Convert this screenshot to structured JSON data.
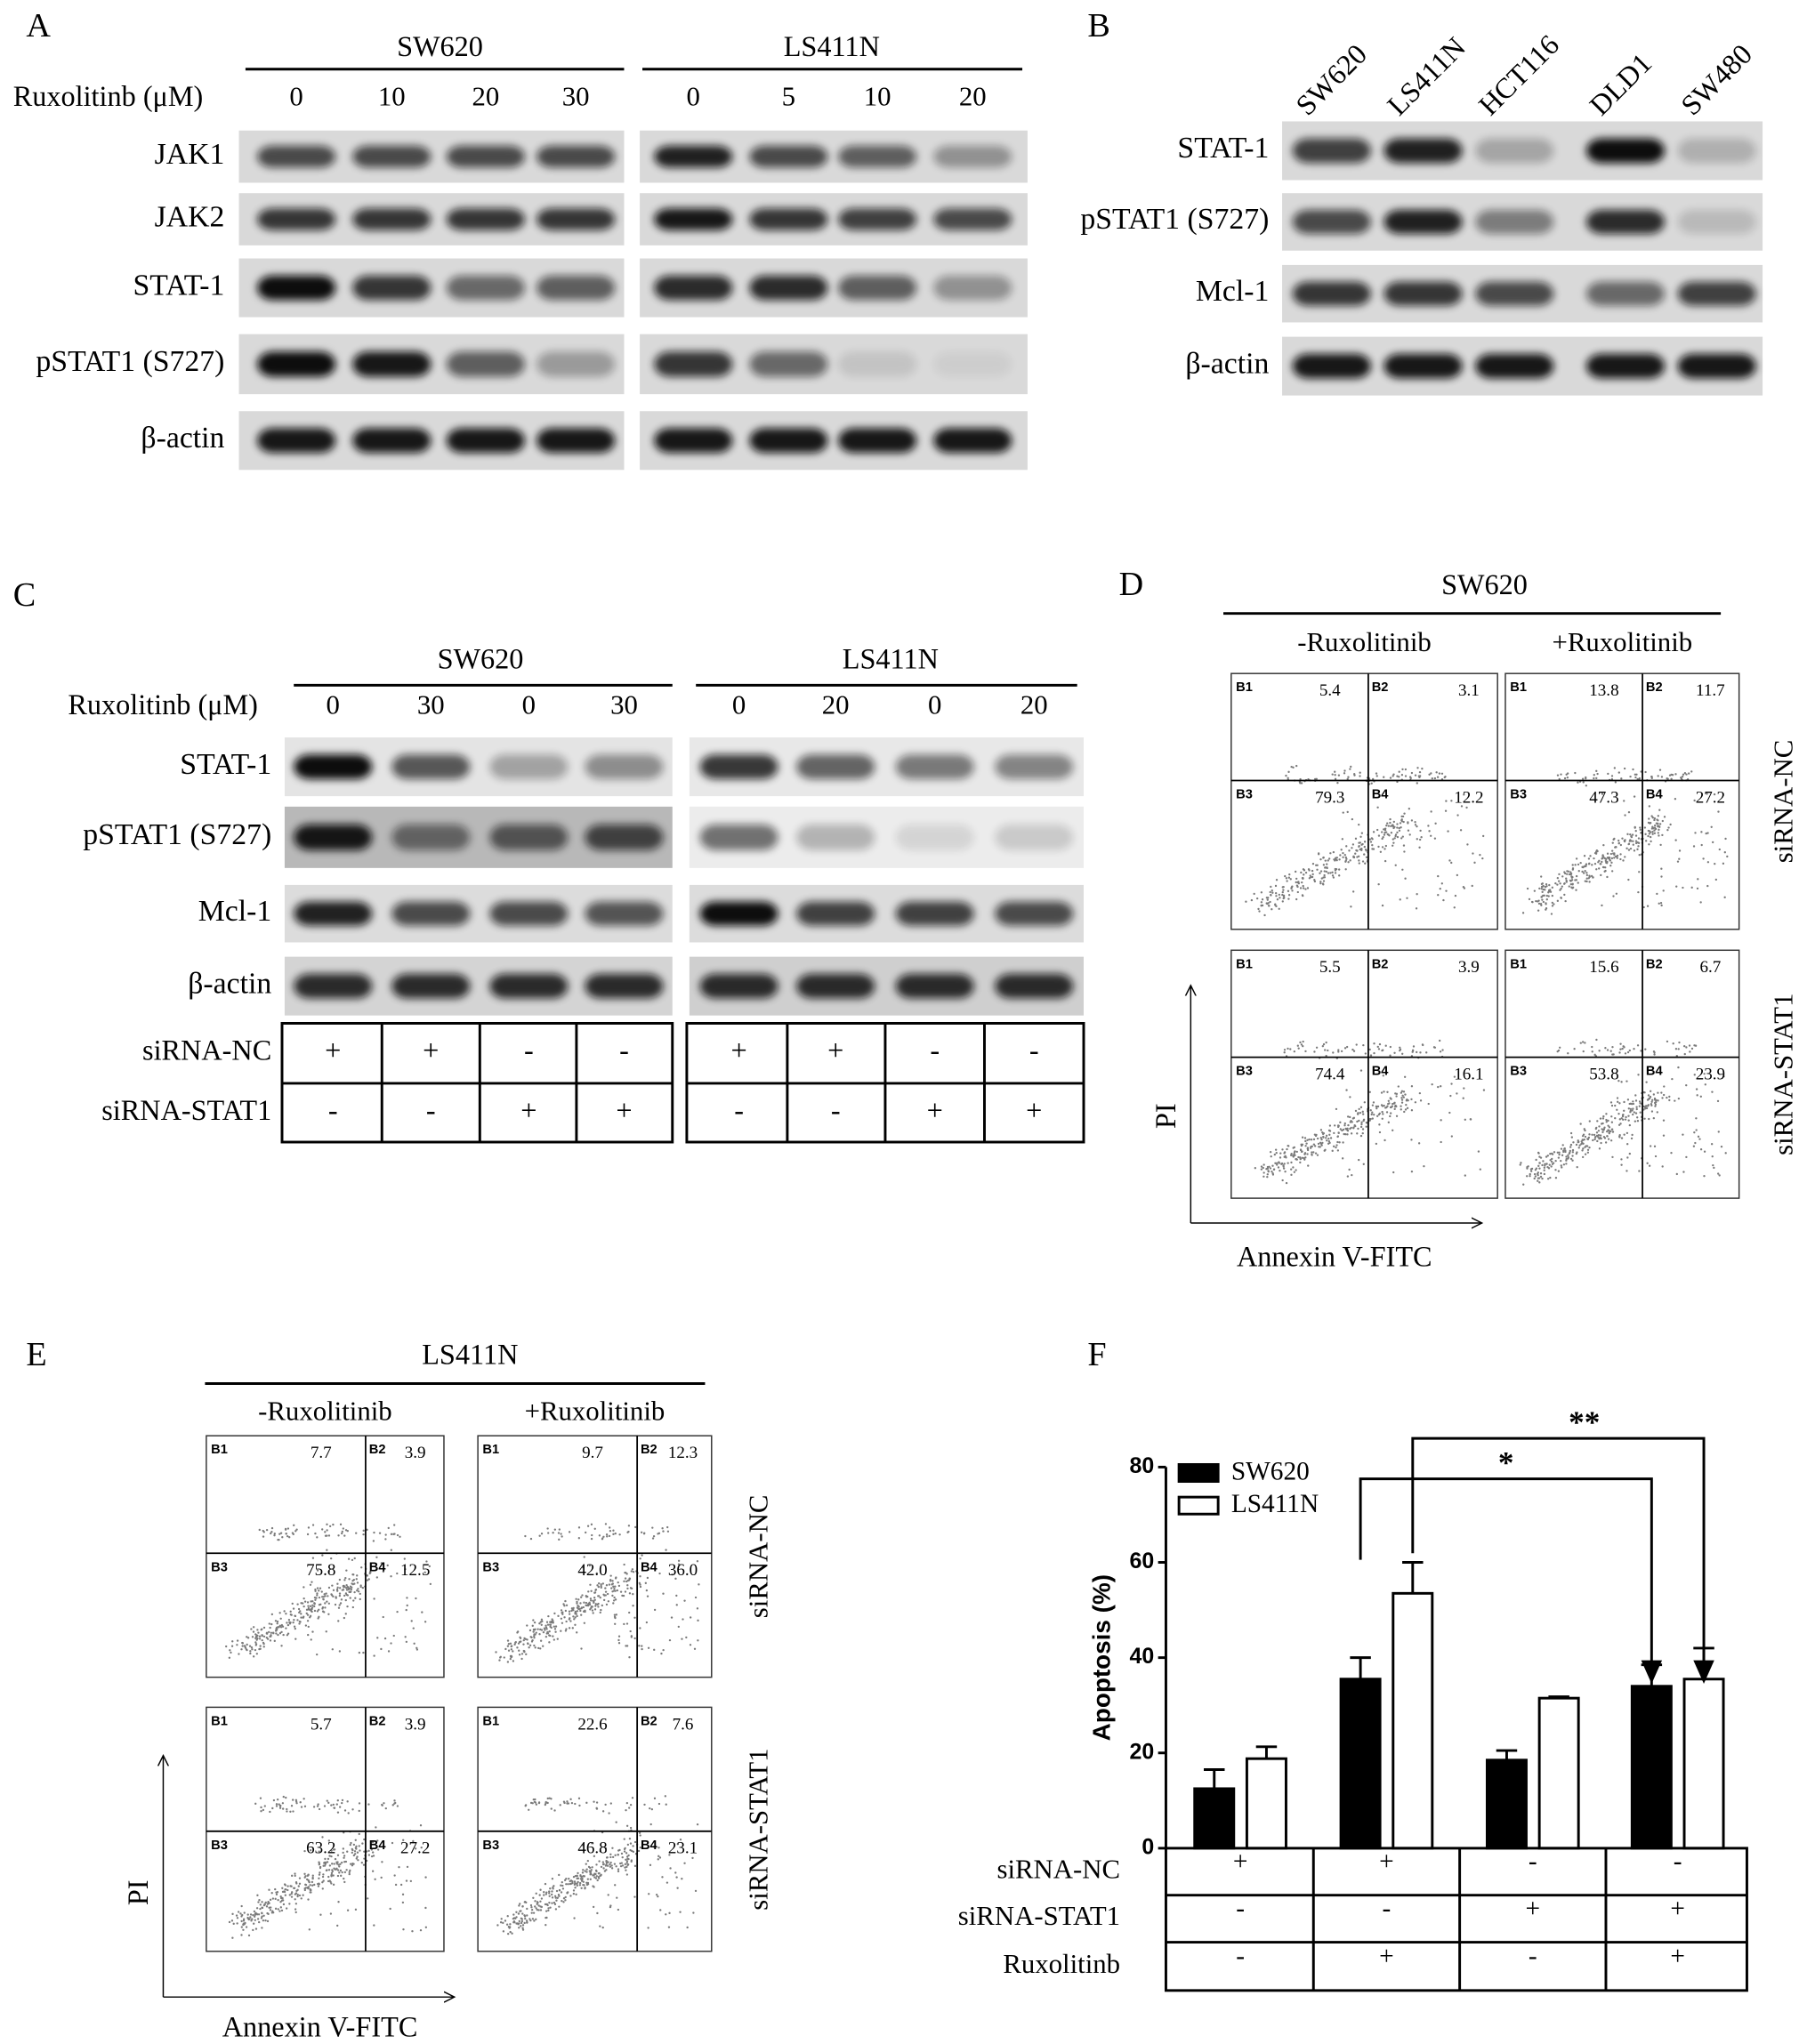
{
  "panel_a": {
    "label": "A",
    "dose_label": "Ruxolitinb (μM)",
    "groups": [
      {
        "name": "SW620",
        "doses": [
          0,
          10,
          20,
          30
        ]
      },
      {
        "name": "LS411N",
        "doses": [
          0,
          5,
          10,
          20
        ]
      }
    ],
    "rows": [
      "JAK1",
      "JAK2",
      "STAT-1",
      "pSTAT1 (S727)",
      "β-actin"
    ]
  },
  "panel_b": {
    "label": "B",
    "cell_lines": [
      "SW620",
      "LS411N",
      "HCT116",
      "DLD1",
      "SW480"
    ],
    "rows": [
      "STAT-1",
      "pSTAT1 (S727)",
      "Mcl-1",
      "β-actin"
    ]
  },
  "panel_c": {
    "label": "C",
    "dose_label": "Ruxolitinb (μM)",
    "groups": [
      {
        "name": "SW620",
        "doses": [
          0,
          30,
          0,
          30
        ],
        "sirna_nc": [
          "+",
          "+",
          "-",
          "-"
        ],
        "sirna_stat1": [
          "-",
          "-",
          "+",
          "+"
        ]
      },
      {
        "name": "LS411N",
        "doses": [
          0,
          20,
          0,
          20
        ],
        "sirna_nc": [
          "+",
          "+",
          "-",
          "-"
        ],
        "sirna_stat1": [
          "-",
          "-",
          "+",
          "+"
        ]
      }
    ],
    "rows": [
      "STAT-1",
      "pSTAT1 (S727)",
      "Mcl-1",
      "β-actin"
    ],
    "table_rows": [
      "siRNA-NC",
      "siRNA-STAT1"
    ]
  },
  "panel_d": {
    "label": "D",
    "title": "SW620",
    "columns": [
      "-Ruxolitinib",
      "+Ruxolitinib"
    ],
    "rows": [
      "siRNA-NC",
      "siRNA-STAT1"
    ],
    "ylabel": "PI",
    "xlabel": "Annexin V-FITC",
    "quadrant_names": [
      "B1",
      "B2",
      "B3",
      "B4"
    ],
    "plots": [
      [
        [
          "5.4",
          "3.1",
          "79.3",
          "12.2"
        ],
        [
          "13.8",
          "11.7",
          "47.3",
          "27.2"
        ]
      ],
      [
        [
          "5.5",
          "3.9",
          "74.4",
          "16.1"
        ],
        [
          "15.6",
          "6.7",
          "53.8",
          "23.9"
        ]
      ]
    ]
  },
  "panel_e": {
    "label": "E",
    "title": "LS411N",
    "columns": [
      "-Ruxolitinib",
      "+Ruxolitinib"
    ],
    "rows": [
      "siRNA-NC",
      "siRNA-STAT1"
    ],
    "ylabel": "PI",
    "xlabel": "Annexin V-FITC",
    "quadrant_names": [
      "B1",
      "B2",
      "B3",
      "B4"
    ],
    "plots": [
      [
        [
          "7.7",
          "3.9",
          "75.8",
          "12.5"
        ],
        [
          "9.7",
          "12.3",
          "42.0",
          "36.0"
        ]
      ],
      [
        [
          "5.7",
          "3.9",
          "63.2",
          "27.2"
        ],
        [
          "22.6",
          "7.6",
          "46.8",
          "23.1"
        ]
      ]
    ]
  },
  "chart_data": {
    "type": "bar",
    "panel_label": "F",
    "ylabel": "Apoptosis (%)",
    "ylim": [
      0,
      80
    ],
    "yticks": [
      0,
      20,
      40,
      60,
      80
    ],
    "series": [
      {
        "name": "SW620",
        "color": "#000000",
        "values": [
          12.5,
          35.5,
          18.5,
          34
        ],
        "errors": [
          4,
          4.5,
          2,
          4.5
        ]
      },
      {
        "name": "LS411N",
        "color": "#ffffff",
        "values": [
          18.8,
          53.5,
          31.5,
          35.5
        ],
        "errors": [
          2.5,
          6.5,
          0.3,
          6.5
        ]
      }
    ],
    "significance": [
      "*",
      "**"
    ],
    "table": [
      {
        "name": "siRNA-NC",
        "values": [
          "+",
          "+",
          "-",
          "-"
        ]
      },
      {
        "name": "siRNA-STAT1",
        "values": [
          "-",
          "-",
          "+",
          "+"
        ]
      },
      {
        "name": "Ruxolitinb",
        "values": [
          "-",
          "+",
          "-",
          "+"
        ]
      }
    ]
  }
}
